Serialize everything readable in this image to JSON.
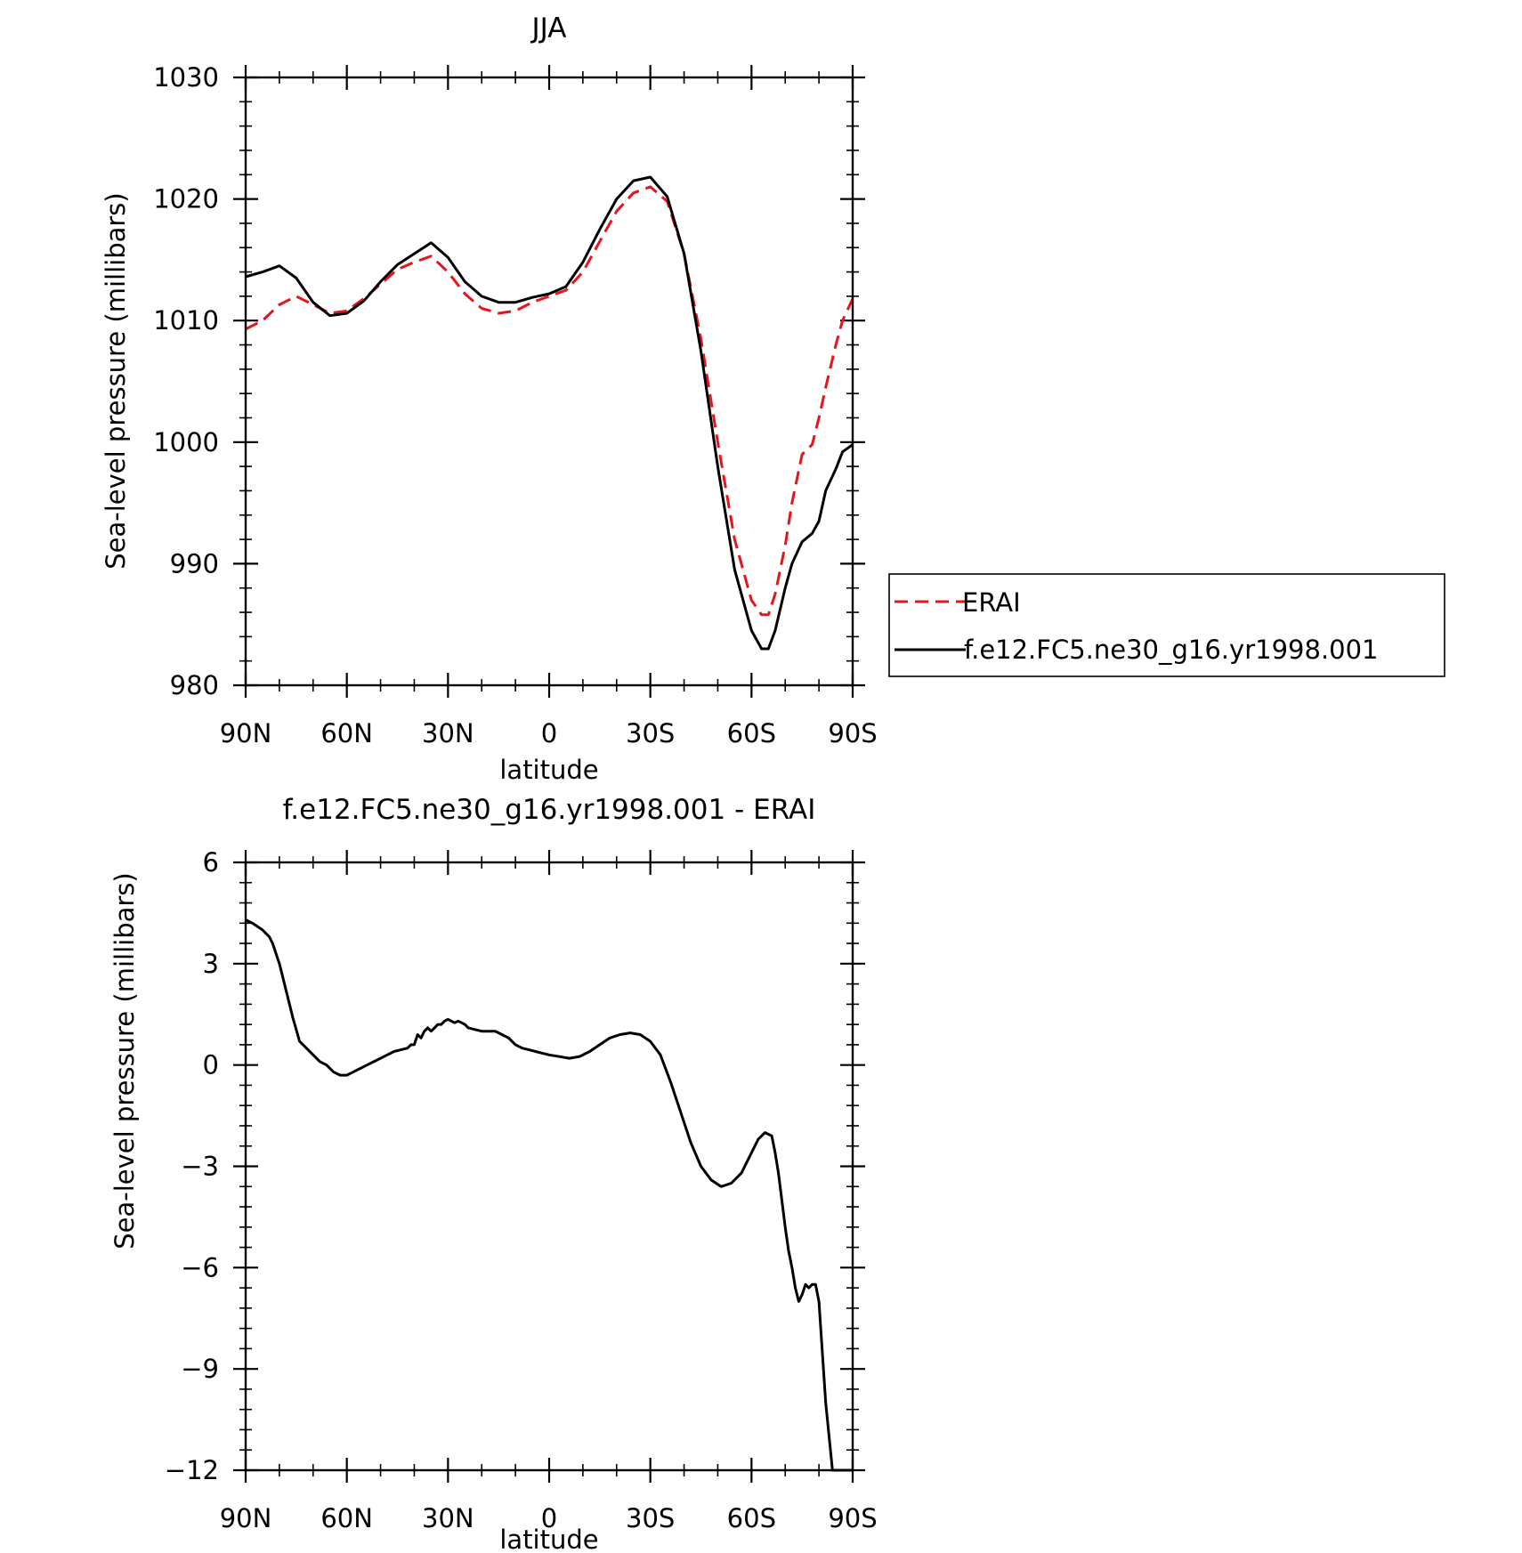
{
  "chart_data": [
    {
      "type": "line",
      "title": "JJA",
      "xlabel": "latitude",
      "ylabel": "Sea-level pressure (millibars)",
      "xlim": [
        90,
        -90
      ],
      "ylim": [
        980,
        1030
      ],
      "x_ticks": [
        90,
        60,
        30,
        0,
        -30,
        -60,
        -90
      ],
      "x_tick_labels": [
        "90N",
        "60N",
        "30N",
        "0",
        "30S",
        "60S",
        "90S"
      ],
      "y_ticks": [
        980,
        990,
        1000,
        1010,
        1020,
        1030
      ],
      "y_tick_labels": [
        "980",
        "990",
        "1000",
        "1010",
        "1020",
        "1030"
      ],
      "legend_position": "right",
      "series": [
        {
          "name": "ERAI",
          "color": "#e8141b",
          "dash": "dashed",
          "x": [
            90,
            85,
            80,
            75,
            70,
            65,
            60,
            55,
            50,
            45,
            40,
            35,
            30,
            25,
            20,
            15,
            10,
            5,
            0,
            -5,
            -10,
            -15,
            -20,
            -25,
            -30,
            -35,
            -40,
            -45,
            -50,
            -55,
            -60,
            -63,
            -65,
            -67,
            -70,
            -72,
            -75,
            -78,
            -80,
            -82,
            -85,
            -87,
            -90
          ],
          "y": [
            1009.3,
            1010.0,
            1011.3,
            1012.0,
            1011.3,
            1010.6,
            1010.8,
            1011.8,
            1013.0,
            1014.2,
            1014.8,
            1015.3,
            1014.0,
            1012.2,
            1011.0,
            1010.6,
            1010.8,
            1011.5,
            1012.0,
            1012.5,
            1014.0,
            1016.5,
            1019.0,
            1020.5,
            1021.0,
            1019.8,
            1015.5,
            1008.5,
            1000.0,
            992.0,
            987.0,
            985.8,
            985.8,
            987.5,
            991.5,
            995.0,
            999.0,
            999.8,
            1002.0,
            1004.5,
            1008.0,
            1010.0,
            1011.8
          ]
        },
        {
          "name": "f.e12.FC5.ne30_g16.yr1998.001",
          "color": "#000000",
          "dash": "solid",
          "x": [
            90,
            85,
            80,
            75,
            70,
            65,
            60,
            55,
            50,
            45,
            40,
            35,
            30,
            25,
            20,
            15,
            10,
            5,
            0,
            -5,
            -10,
            -15,
            -20,
            -25,
            -30,
            -35,
            -40,
            -45,
            -50,
            -55,
            -60,
            -63,
            -65,
            -67,
            -70,
            -72,
            -75,
            -78,
            -80,
            -82,
            -85,
            -87,
            -90
          ],
          "y": [
            1013.6,
            1014.0,
            1014.5,
            1013.5,
            1011.5,
            1010.4,
            1010.6,
            1011.6,
            1013.2,
            1014.6,
            1015.5,
            1016.4,
            1015.2,
            1013.2,
            1012.0,
            1011.5,
            1011.5,
            1011.9,
            1012.2,
            1012.8,
            1014.8,
            1017.5,
            1020.0,
            1021.5,
            1021.8,
            1020.2,
            1015.5,
            1007.5,
            998.0,
            989.5,
            984.5,
            983.0,
            983.0,
            984.5,
            988.0,
            990.0,
            991.8,
            992.5,
            993.5,
            996.0,
            997.8,
            999.2,
            999.8
          ]
        }
      ]
    },
    {
      "type": "line",
      "title": "f.e12.FC5.ne30_g16.yr1998.001 - ERAI",
      "xlabel": "latitude",
      "ylabel": "Sea-level pressure (millibars)",
      "xlim": [
        90,
        -90
      ],
      "ylim": [
        -12,
        6
      ],
      "x_ticks": [
        90,
        60,
        30,
        0,
        -30,
        -60,
        -90
      ],
      "x_tick_labels": [
        "90N",
        "60N",
        "30N",
        "0",
        "30S",
        "60S",
        "90S"
      ],
      "y_ticks": [
        -12,
        -9,
        -6,
        -3,
        0,
        3,
        6
      ],
      "y_tick_labels": [
        "−12",
        "−9",
        "−6",
        "−3",
        "0",
        "3",
        "6"
      ],
      "series": [
        {
          "color": "#000000",
          "dash": "solid",
          "x": [
            90,
            88,
            85,
            83,
            82,
            80,
            78,
            76,
            74,
            72,
            70,
            68,
            66,
            64,
            62,
            60,
            58,
            56,
            54,
            52,
            50,
            48,
            46,
            44,
            42,
            41,
            40,
            39,
            38,
            37,
            36,
            35,
            34,
            33,
            32,
            31,
            30,
            29,
            28,
            27,
            26,
            25,
            24,
            22,
            20,
            18,
            16,
            14,
            12,
            10,
            8,
            6,
            4,
            2,
            0,
            -3,
            -6,
            -9,
            -12,
            -15,
            -18,
            -21,
            -24,
            -27,
            -30,
            -33,
            -36,
            -39,
            -42,
            -45,
            -48,
            -51,
            -54,
            -57,
            -60,
            -62,
            -64,
            -66,
            -67,
            -68,
            -69,
            -70,
            -71,
            -72,
            -73,
            -74,
            -75,
            -76,
            -77,
            -78,
            -79,
            -80,
            -81,
            -82,
            -83,
            -84,
            -85,
            -86,
            -87,
            -88,
            -89,
            -90
          ],
          "y": [
            4.3,
            4.2,
            4.0,
            3.8,
            3.6,
            3.0,
            2.2,
            1.4,
            0.7,
            0.5,
            0.3,
            0.1,
            0.0,
            -0.2,
            -0.3,
            -0.3,
            -0.2,
            -0.1,
            0.0,
            0.1,
            0.2,
            0.3,
            0.4,
            0.45,
            0.5,
            0.6,
            0.6,
            0.9,
            0.8,
            1.0,
            1.1,
            1.0,
            1.1,
            1.2,
            1.2,
            1.3,
            1.35,
            1.3,
            1.25,
            1.3,
            1.25,
            1.2,
            1.1,
            1.05,
            1.0,
            1.0,
            1.0,
            0.9,
            0.8,
            0.6,
            0.5,
            0.45,
            0.4,
            0.35,
            0.3,
            0.25,
            0.2,
            0.25,
            0.4,
            0.6,
            0.8,
            0.9,
            0.95,
            0.9,
            0.7,
            0.3,
            -0.5,
            -1.4,
            -2.3,
            -3.0,
            -3.4,
            -3.6,
            -3.5,
            -3.2,
            -2.6,
            -2.2,
            -2.0,
            -2.1,
            -2.6,
            -3.2,
            -4.0,
            -4.8,
            -5.5,
            -6.0,
            -6.6,
            -7.0,
            -6.8,
            -6.5,
            -6.6,
            -6.5,
            -6.5,
            -7.0,
            -8.5,
            -10.0,
            -11.0,
            -12.0,
            -12.0,
            -12.0,
            -12.0,
            -12.0,
            -12.0,
            -12.0
          ]
        }
      ]
    }
  ]
}
